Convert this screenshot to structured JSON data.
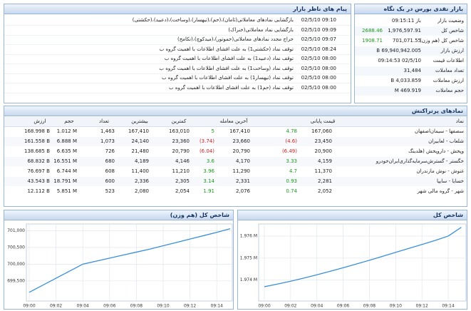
{
  "market_summary": {
    "title": "بازار نقدی بورس در یک نگاه",
    "rows": [
      {
        "label": "وضعیت بازار",
        "value": "باز 09:15:11"
      },
      {
        "label": "شاخص کل",
        "value": "1,976,597.91",
        "change": "2688.46"
      },
      {
        "label": "شاخص کل (هم وزن)",
        "value": "701,071.55",
        "change": "1908.71"
      },
      {
        "label": "ارزش بازار",
        "value": "69,940,942.005 B"
      },
      {
        "label": "اطلاعات قیمت",
        "value": "02/5/10 09:14:53"
      },
      {
        "label": "تعداد معاملات",
        "value": "31,484"
      },
      {
        "label": "ارزش معاملات",
        "value": "4,033.859 B"
      },
      {
        "label": "حجم معاملات",
        "value": "469.919 M"
      }
    ]
  },
  "messages": {
    "title": "پیام های ناظر بازار",
    "rows": [
      {
        "time": "02/5/10 09:10",
        "text": "بازگشایی نمادهای معاملاتی(ثامان)،(حم)،(تیهسار)،(وساخت)،(دعبید)،(حکشتی)"
      },
      {
        "time": "02/5/10 09:09",
        "text": "بازگشایی نماد معاملاتی(خنراک)"
      },
      {
        "time": "02/5/10 09:07",
        "text": "حراج مجدد نمادهای معاملاتی(خموتور)،(میدکوچ)،(نکامخ)"
      },
      {
        "time": "02/5/10 08:24",
        "text": "توقف نماد (حکشتی1) به علت افشای اطلاعات با اهمیت گروه ب"
      },
      {
        "time": "02/5/10 08:00",
        "text": "توقف نماد (دعبید1) به علت افشای اطلاعات با اهمیت گروه ب"
      },
      {
        "time": "02/5/10 08:00",
        "text": "توقف نماد (وساخت1) به علت افشای اطلاعات با اهمیت گروه ب"
      },
      {
        "time": "02/5/10 08:00",
        "text": "توقف نماد (تیهسار1) به علت افشای اطلاعات با اهمیت گروه ب"
      },
      {
        "time": "02/5/10 08:00",
        "text": "توقف نماد (حم1) به علت افشای اطلاعات با اهمیت گروه ب"
      }
    ]
  },
  "top_symbols": {
    "title": "نمادهای پرتراکنش",
    "headers": [
      "نماد",
      "قیمت پایانی",
      "آخرین معامله",
      "کمترین",
      "بیشترین",
      "تعداد",
      "حجم",
      "ارزش"
    ],
    "rows": [
      [
        "سصفها - سیمان‌اصفهان",
        "167,060",
        "4.78",
        "167,410",
        "5",
        "163,010",
        "167,410",
        "1,463",
        "1.012 M",
        "168.998 B"
      ],
      [
        "شلعاب - لعابیران",
        "23,450",
        "(4.6)",
        "23,660",
        "(3.74)",
        "23,360",
        "24,140",
        "1,073",
        "6.888 M",
        "161.558 B"
      ],
      [
        "وپخش - داروپخش (هلدینگ",
        "20,900",
        "(6.49)",
        "20,790",
        "(6.04)",
        "20,790",
        "21,480",
        "726",
        "6.635 M",
        "138.685 B"
      ],
      [
        "خگستر - گسترش‌سرمایه‌گذاری‌ایران‌خودرو",
        "4,159",
        "3.33",
        "4,170",
        "3.6",
        "4,146",
        "4,189",
        "680",
        "16.551 M",
        "68.832 B"
      ],
      [
        "غنوش - نوش مازندران",
        "11,370",
        "4.7",
        "11,290",
        "3.96",
        "11,210",
        "11,400",
        "608",
        "6.744 M",
        "76.697 B"
      ],
      [
        "خسایا - سایپا",
        "2,281",
        "0.93",
        "2,331",
        "3.14",
        "2,305",
        "2,336",
        "600",
        "18.791 M",
        "43.543 B"
      ],
      [
        "شهر - گروه مالی شهر",
        "2,052",
        "0.74",
        "2,076",
        "1.91",
        "2,054",
        "2,080",
        "523",
        "5.851 M",
        "12.112 B"
      ]
    ]
  },
  "chart_data": [
    {
      "type": "line",
      "title": "شاخص کل (هم وزن)",
      "categories": [
        "09:00",
        null,
        "09:02",
        null,
        "09:04",
        null,
        "09:06",
        null,
        "09:08",
        null,
        "09:10",
        null,
        "09:12",
        null,
        "09:14",
        null
      ],
      "values": [
        699160,
        699370,
        699580,
        699790,
        700000,
        700090,
        700180,
        700270,
        700360,
        700450,
        700550,
        700650,
        700750,
        700850,
        700950,
        701060
      ],
      "color": "#3a8fdc",
      "ylim": [
        698900,
        701200
      ],
      "yticks": [
        {
          "value": 699500,
          "label": "699,500"
        },
        {
          "value": 700000,
          "label": "700,000"
        },
        {
          "value": 700500,
          "label": "700,500"
        },
        {
          "value": 701000,
          "label": "701,000"
        }
      ],
      "grid": true
    },
    {
      "type": "line",
      "title": "شاخص کل",
      "categories": [
        "09:00",
        null,
        "09:02",
        null,
        "09:04",
        null,
        "09:06",
        null,
        "09:08",
        null,
        "09:10",
        null,
        "09:12",
        null,
        "09:14",
        null
      ],
      "values": [
        1973700,
        1973820,
        1973950,
        1974090,
        1974240,
        1974400,
        1974560,
        1974730,
        1974900,
        1975080,
        1975260,
        1975440,
        1975620,
        1975800,
        1976000,
        1976400
      ],
      "color": "#3a8fdc",
      "ylim": [
        1973050,
        1976550
      ],
      "yticks": [
        {
          "value": 1974000,
          "label": "1.974 M"
        },
        {
          "value": 1975000,
          "label": "1.975 M"
        },
        {
          "value": 1976000,
          "label": "1.976 M"
        }
      ],
      "grid": true
    }
  ]
}
